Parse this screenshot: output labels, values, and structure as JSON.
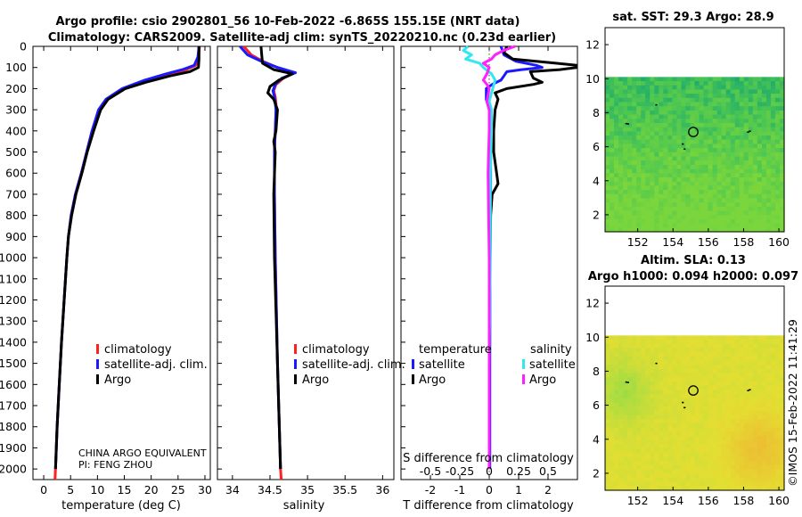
{
  "colors": {
    "climatology": "#ff2020",
    "satellite_adj": "#1a1aff",
    "argo": "#000000",
    "sat_salinity": "#30e8f0",
    "argo_salinity": "#ff20ff",
    "map_mask": "#ffffff"
  },
  "title": {
    "line1": "Argo profile: csio 2902801_56 10-Feb-2022 -6.865S 155.15E (NRT data)",
    "line2": "Climatology: CARS2009. Satellite-adj clim: synTS_20220210.nc (0.23d earlier)"
  },
  "depth_axis": {
    "ticks": [
      0,
      100,
      200,
      300,
      400,
      500,
      600,
      700,
      800,
      900,
      1000,
      1100,
      1200,
      1300,
      1400,
      1500,
      1600,
      1700,
      1800,
      1900,
      2000
    ]
  },
  "chart_data": [
    {
      "id": "temperature",
      "type": "line",
      "xlabel": "temperature (deg C)",
      "ylabel": "",
      "xlim": [
        -2,
        31
      ],
      "ylim": [
        2050,
        0
      ],
      "xticks": [
        0,
        5,
        10,
        15,
        20,
        25,
        30
      ],
      "xticklabels": [
        "0",
        "5",
        "10",
        "15",
        "20",
        "25",
        "30"
      ],
      "legend": [
        "climatology",
        "satellite-adj. clim.",
        "Argo"
      ],
      "credit": [
        "CHINA ARGO EQUIVALENT",
        "PI: FENG ZHOU"
      ],
      "series": [
        {
          "name": "climatology",
          "depth": [
            0,
            50,
            90,
            110,
            130,
            160,
            200,
            250,
            300,
            400,
            500,
            600,
            700,
            800,
            900,
            1000,
            1200,
            1400,
            1600,
            1800,
            2000,
            2050
          ],
          "values": [
            29.0,
            28.8,
            28.3,
            26.5,
            23.5,
            19.5,
            15.0,
            11.8,
            10.3,
            9.0,
            8.0,
            7.0,
            5.9,
            5.1,
            4.6,
            4.3,
            3.8,
            3.3,
            2.9,
            2.5,
            2.2,
            2.1
          ]
        },
        {
          "name": "satellite-adj. clim.",
          "depth": [
            0,
            50,
            90,
            110,
            130,
            160,
            200,
            250,
            300,
            400,
            500,
            600,
            700,
            800,
            900,
            1000,
            1200,
            1400,
            1600,
            1800,
            2000
          ],
          "values": [
            28.9,
            28.7,
            28.0,
            25.8,
            22.8,
            18.8,
            14.6,
            11.6,
            10.2,
            9.0,
            8.0,
            7.0,
            5.9,
            5.1,
            4.6,
            4.3,
            3.8,
            3.3,
            2.9,
            2.5,
            2.2
          ]
        },
        {
          "name": "Argo",
          "depth": [
            0,
            60,
            100,
            120,
            140,
            170,
            200,
            250,
            300,
            400,
            500,
            600,
            700,
            800,
            900,
            1000,
            1200,
            1400,
            1600,
            1800,
            2000
          ],
          "values": [
            28.9,
            28.9,
            28.8,
            27.2,
            23.5,
            19.0,
            15.2,
            12.0,
            10.6,
            9.3,
            8.1,
            7.1,
            6.0,
            5.2,
            4.6,
            4.3,
            3.8,
            3.3,
            2.9,
            2.5,
            2.2
          ]
        }
      ]
    },
    {
      "id": "salinity",
      "type": "line",
      "xlabel": "salinity",
      "ylabel": "",
      "xlim": [
        33.8,
        36.15
      ],
      "ylim": [
        2050,
        0
      ],
      "xticks": [
        34,
        34.5,
        35,
        35.5,
        36
      ],
      "xticklabels": [
        "34",
        "34.5",
        "35",
        "35.5",
        "36"
      ],
      "legend": [
        "climatology",
        "satellite-adj. clim.",
        "Argo"
      ],
      "series": [
        {
          "name": "climatology",
          "depth": [
            0,
            40,
            70,
            100,
            125,
            150,
            180,
            210,
            240,
            270,
            300,
            400,
            500,
            700,
            1000,
            1500,
            2000,
            2050
          ],
          "values": [
            34.15,
            34.25,
            34.4,
            34.6,
            34.82,
            34.68,
            34.58,
            34.55,
            34.57,
            34.58,
            34.58,
            34.57,
            34.56,
            34.56,
            34.57,
            34.6,
            34.64,
            34.65
          ]
        },
        {
          "name": "satellite-adj. clim.",
          "depth": [
            0,
            40,
            70,
            100,
            125,
            150,
            180,
            210,
            240,
            270,
            300,
            400,
            500,
            700,
            1000,
            1500,
            2000
          ],
          "values": [
            34.1,
            34.2,
            34.38,
            34.6,
            34.84,
            34.66,
            34.57,
            34.54,
            34.56,
            34.57,
            34.58,
            34.57,
            34.56,
            34.56,
            34.57,
            34.6,
            34.64
          ]
        },
        {
          "name": "Argo",
          "depth": [
            0,
            40,
            80,
            110,
            130,
            160,
            190,
            220,
            250,
            280,
            300,
            400,
            450,
            500,
            700,
            1000,
            1500,
            2000
          ],
          "values": [
            34.38,
            34.39,
            34.4,
            34.55,
            34.8,
            34.62,
            34.5,
            34.47,
            34.55,
            34.58,
            34.6,
            34.58,
            34.55,
            34.57,
            34.55,
            34.56,
            34.6,
            34.64
          ]
        }
      ]
    },
    {
      "id": "difference",
      "type": "line",
      "xlabel": "T difference from climatology",
      "secondary_xlabel": "S difference from climatology",
      "xlim": [
        -3,
        3
      ],
      "ylim": [
        2050,
        0
      ],
      "xticks": [
        -2,
        -1,
        0,
        1,
        2
      ],
      "xticklabels": [
        "-2",
        "-1",
        "0",
        "1",
        "2"
      ],
      "secondary_ticklabels": [
        "-0.5",
        "-0.25",
        "0",
        "0.25",
        "0.5"
      ],
      "legend_temperature_title": "temperature",
      "legend_salinity_title": "salinity",
      "legend_temperature": [
        "satellite",
        "Argo"
      ],
      "legend_salinity": [
        "satellite",
        "Argo"
      ],
      "series": [
        {
          "name": "temperature satellite",
          "depth": [
            0,
            40,
            70,
            90,
            100,
            110,
            120,
            140,
            160,
            180,
            200,
            250,
            300,
            400,
            500,
            700,
            1000,
            1500,
            2000
          ],
          "values": [
            0.4,
            0.5,
            0.9,
            1.6,
            1.8,
            1.1,
            0.6,
            0.5,
            0.4,
            0.1,
            -0.1,
            -0.1,
            0.0,
            0.05,
            0.05,
            0.05,
            0.03,
            0.02,
            0.02
          ]
        },
        {
          "name": "temperature Argo",
          "depth": [
            0,
            30,
            60,
            80,
            90,
            100,
            110,
            120,
            150,
            170,
            180,
            200,
            220,
            250,
            300,
            400,
            500,
            600,
            650,
            700,
            800,
            1000,
            1500,
            2000
          ],
          "values": [
            0.6,
            0.5,
            0.8,
            2.3,
            3.0,
            3.0,
            2.4,
            1.4,
            1.5,
            1.8,
            1.5,
            0.6,
            0.2,
            0.3,
            0.2,
            0.15,
            0.15,
            0.25,
            0.3,
            0.1,
            0.05,
            0.03,
            0.0,
            0.0
          ]
        },
        {
          "name": "salinity satellite",
          "depth": [
            0,
            20,
            40,
            60,
            80,
            100,
            130,
            160,
            200,
            260,
            300,
            400,
            600,
            1000,
            1500,
            2000
          ],
          "values": [
            -0.18,
            -0.22,
            -0.15,
            -0.2,
            -0.08,
            -0.05,
            0.02,
            0.05,
            0.03,
            0.0,
            0.02,
            0.02,
            0.01,
            0.01,
            0.0,
            0.0
          ]
        },
        {
          "name": "salinity Argo",
          "depth": [
            0,
            20,
            40,
            60,
            80,
            100,
            130,
            160,
            180,
            200,
            260,
            300,
            400,
            600,
            1000,
            1500,
            2000
          ],
          "values": [
            0.22,
            0.12,
            0.05,
            0.02,
            -0.05,
            0.0,
            -0.02,
            -0.05,
            -0.02,
            0.0,
            -0.02,
            0.0,
            0.0,
            -0.01,
            0.0,
            0.0,
            0.0
          ]
        }
      ]
    },
    {
      "id": "sst_map",
      "type": "heatmap",
      "title": "sat. SST: 29.3 Argo: 28.9",
      "xlim": [
        150.15,
        160.3
      ],
      "ylim": [
        1,
        13
      ],
      "xticks": [
        152,
        154,
        156,
        158,
        160
      ],
      "yticks": [
        2,
        4,
        6,
        8,
        10,
        12
      ],
      "xticklabels": [
        "152",
        "154",
        "156",
        "158",
        "160"
      ],
      "yticklabels": [
        "2",
        "4",
        "6",
        "8",
        "10",
        "12"
      ],
      "mask_above": 10.1,
      "float_position": [
        155.15,
        6.865
      ]
    },
    {
      "id": "sla_map",
      "type": "heatmap",
      "title": "Altim. SLA: 0.13",
      "subtitle": "Argo h1000: 0.094 h2000: 0.097",
      "xlim": [
        150.15,
        160.3
      ],
      "ylim": [
        1,
        13
      ],
      "xticks": [
        152,
        154,
        156,
        158,
        160
      ],
      "yticks": [
        2,
        4,
        6,
        8,
        10,
        12
      ],
      "xticklabels": [
        "152",
        "154",
        "156",
        "158",
        "160"
      ],
      "yticklabels": [
        "2",
        "4",
        "6",
        "8",
        "10",
        "12"
      ],
      "mask_above": 10.1,
      "float_position": [
        155.15,
        6.865
      ]
    }
  ],
  "stamp": "©IMOS 15-Feb-2022 11:41:29"
}
